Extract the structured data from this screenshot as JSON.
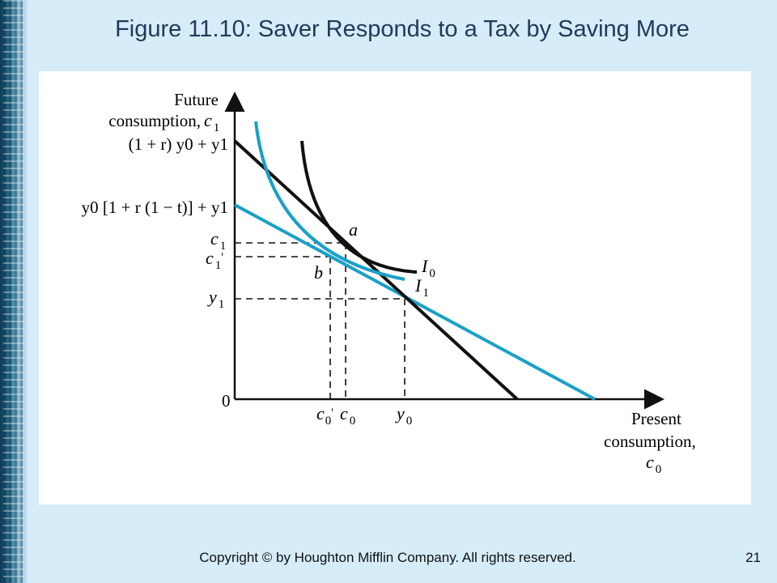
{
  "slide": {
    "title": "Figure 11.10:  Saver Responds to a Tax by Saving More",
    "copyright": "Copyright © by Houghton Mifflin Company. All rights reserved.",
    "page_number": "21"
  },
  "diagram": {
    "y_axis_label": [
      "Future",
      "consumption,"
    ],
    "y_axis_symbol": {
      "main": "c",
      "sub": "1"
    },
    "x_axis_label": [
      "Present",
      "consumption,"
    ],
    "x_axis_symbol": {
      "main": "c",
      "sub": "0"
    },
    "origin_label": "0",
    "y_intercept_pretax": "(1 + r) y0 + y1",
    "y_intercept_aftertax": "y0 [1 + r (1 − t)] + y1",
    "tick_c1": {
      "main": "c",
      "sub": "1"
    },
    "tick_c1_prime": {
      "main": "c",
      "sub": "1",
      "prime": "'"
    },
    "tick_y1": {
      "main": "y",
      "sub": "1"
    },
    "tick_c0_prime": {
      "main": "c",
      "sub": "0",
      "prime": "'"
    },
    "tick_c0": {
      "main": "c",
      "sub": "0"
    },
    "tick_y0": {
      "main": "y",
      "sub": "0"
    },
    "point_a": "a",
    "point_b": "b",
    "curve_I0": {
      "main": "I",
      "sub": "0"
    },
    "curve_I1": {
      "main": "I",
      "sub": "1"
    },
    "colors": {
      "pretax": "#111111",
      "aftertax": "#1aa0c8"
    }
  }
}
